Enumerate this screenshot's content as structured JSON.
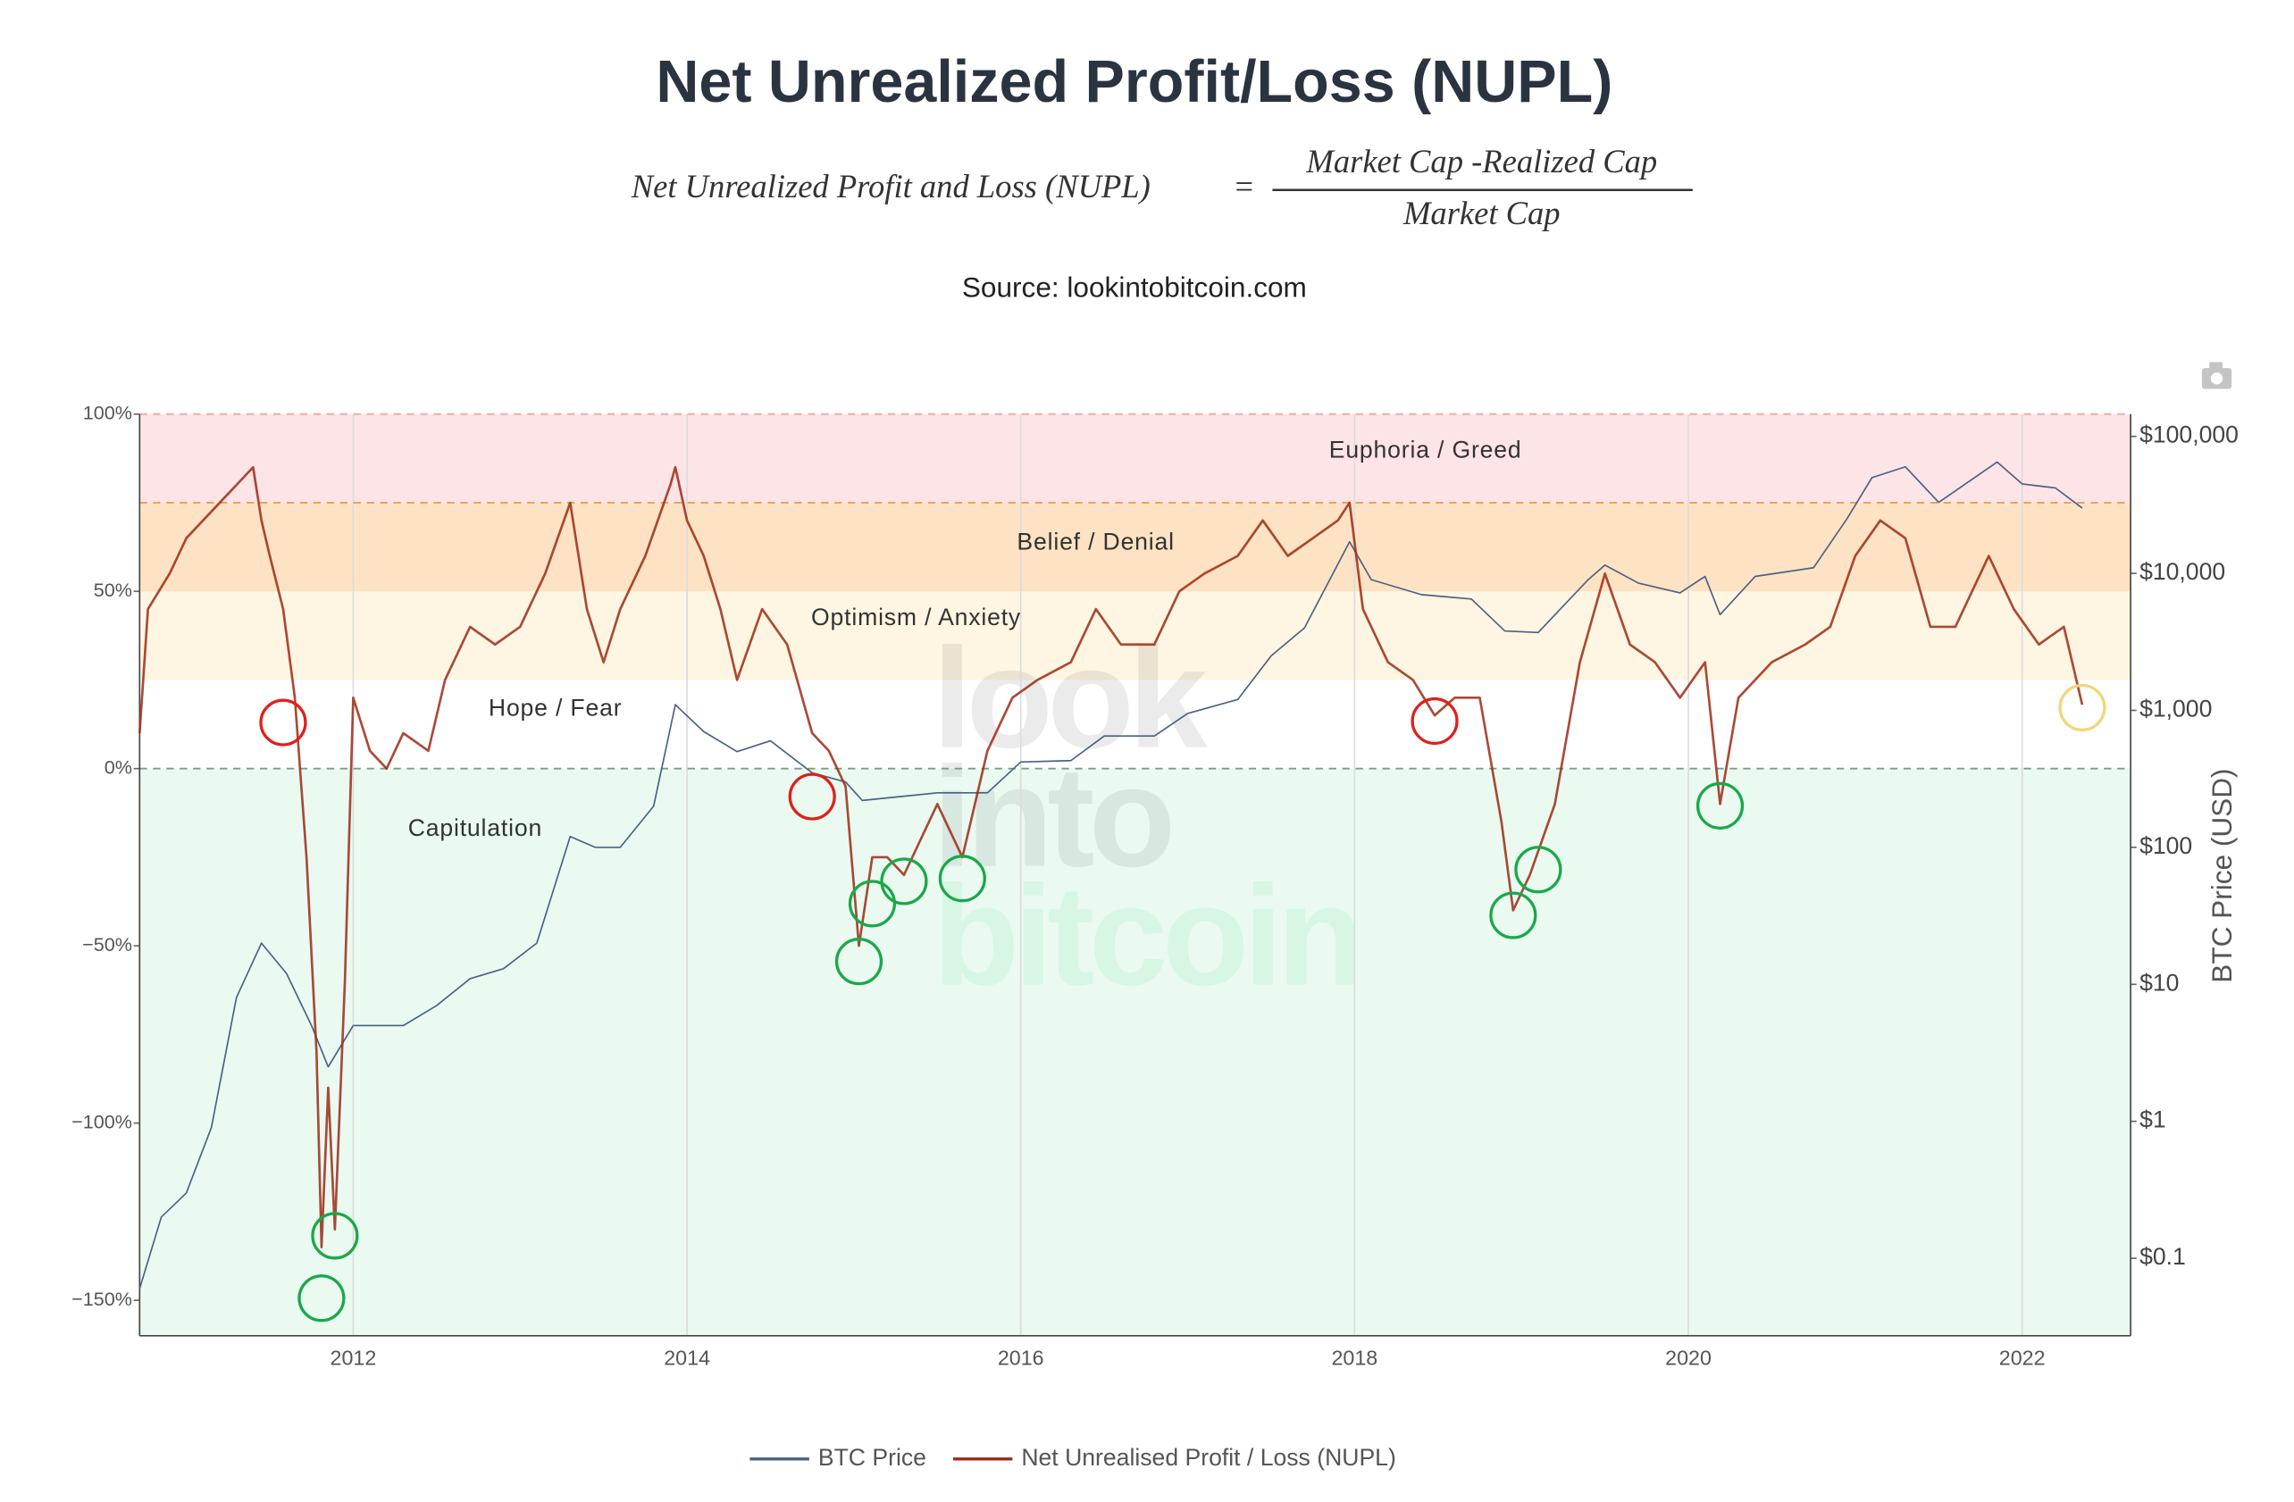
{
  "chart_data": {
    "type": "line",
    "title": "Net Unrealized Profit/Loss (NUPL)",
    "formula": {
      "lhs": "Net Unrealized Profit and Loss (NUPL)",
      "equals": "=",
      "numerator": "Market Cap -Realized Cap",
      "denominator": "Market Cap"
    },
    "subtitle": "Source: lookintobitcoin.com",
    "watermark": [
      "look",
      "into",
      "bitcoin"
    ],
    "y2_label": "BTC Price (USD)",
    "xlim": [
      2010.72,
      2022.65
    ],
    "xticks": [
      2012,
      2014,
      2016,
      2018,
      2020,
      2022
    ],
    "ylim": [
      -160,
      100
    ],
    "yticks": [
      {
        "value": -150,
        "label": "−150%"
      },
      {
        "value": -100,
        "label": "−100%"
      },
      {
        "value": -50,
        "label": "−50%"
      },
      {
        "value": 0,
        "label": "0%"
      },
      {
        "value": 50,
        "label": "50%"
      },
      {
        "value": 100,
        "label": "100%"
      }
    ],
    "y2lim": [
      0.0272,
      145500
    ],
    "y2_log": true,
    "y2ticks": [
      {
        "value": 0.1,
        "label": "$0.1"
      },
      {
        "value": 1,
        "label": "$1"
      },
      {
        "value": 10,
        "label": "$10"
      },
      {
        "value": 100,
        "label": "$100"
      },
      {
        "value": 1000,
        "label": "$1,000"
      },
      {
        "value": 10000,
        "label": "$10,000"
      },
      {
        "value": 100000,
        "label": "$100,000"
      }
    ],
    "grid": true,
    "legend": "bottom",
    "zones": [
      {
        "name": "Capitulation",
        "to": 0,
        "color": "#eafaf1"
      },
      {
        "name": "Hope / Fear",
        "from": 0,
        "to": 25,
        "color": "#ffffff"
      },
      {
        "name": "Optimism / Anxiety",
        "from": 25,
        "to": 50,
        "color": "#fef6e2"
      },
      {
        "name": "Belief / Denial",
        "from": 50,
        "to": 75,
        "color": "#fde3c3"
      },
      {
        "name": "Euphoria / Greed",
        "from": 75,
        "to": 100,
        "color": "#fde4e6"
      }
    ],
    "reference_lines": [
      {
        "value": 100,
        "color": "#f2aaa4"
      },
      {
        "value": 75,
        "color": "#eda25a"
      },
      {
        "value": 0,
        "color": "#7d9a8a"
      }
    ],
    "series": [
      {
        "name": "BTC Price",
        "color": "#4a6184",
        "axis": "y2",
        "x": [
          2010.72,
          2010.85,
          2011.0,
          2011.15,
          2011.3,
          2011.45,
          2011.6,
          2011.75,
          2011.85,
          2012.0,
          2012.3,
          2012.5,
          2012.7,
          2012.9,
          2013.1,
          2013.3,
          2013.45,
          2013.6,
          2013.8,
          2013.93,
          2014.1,
          2014.3,
          2014.5,
          2014.75,
          2014.95,
          2015.05,
          2015.5,
          2015.8,
          2016.0,
          2016.3,
          2016.5,
          2016.8,
          2017.0,
          2017.3,
          2017.5,
          2017.7,
          2017.97,
          2018.1,
          2018.4,
          2018.7,
          2018.9,
          2019.1,
          2019.4,
          2019.5,
          2019.7,
          2019.95,
          2020.1,
          2020.19,
          2020.4,
          2020.75,
          2020.95,
          2021.1,
          2021.3,
          2021.5,
          2021.85,
          2022.0,
          2022.2,
          2022.36
        ],
        "values": [
          0.06,
          0.2,
          0.3,
          0.9,
          8,
          20,
          12,
          5,
          2.5,
          5,
          5,
          7,
          11,
          13,
          20,
          120,
          100,
          100,
          200,
          1100,
          700,
          500,
          600,
          350,
          300,
          220,
          250,
          250,
          420,
          430,
          650,
          650,
          950,
          1200,
          2500,
          4000,
          17000,
          9000,
          7000,
          6500,
          3800,
          3700,
          9000,
          11500,
          8500,
          7200,
          9500,
          5000,
          9500,
          11000,
          25000,
          50000,
          60000,
          33000,
          65000,
          45000,
          42000,
          30000
        ]
      },
      {
        "name": "Net Unrealised Profit / Loss (NUPL)",
        "color": "#9b2a15",
        "x": [
          2010.72,
          2010.77,
          2010.9,
          2011.0,
          2011.1,
          2011.2,
          2011.3,
          2011.4,
          2011.45,
          2011.5,
          2011.58,
          2011.65,
          2011.72,
          2011.78,
          2011.81,
          2011.85,
          2011.89,
          2011.95,
          2012.0,
          2012.1,
          2012.2,
          2012.3,
          2012.45,
          2012.55,
          2012.7,
          2012.85,
          2013.0,
          2013.15,
          2013.3,
          2013.4,
          2013.5,
          2013.6,
          2013.75,
          2013.9,
          2013.93,
          2014.0,
          2014.1,
          2014.2,
          2014.3,
          2014.45,
          2014.6,
          2014.75,
          2014.85,
          2014.95,
          2015.03,
          2015.11,
          2015.2,
          2015.3,
          2015.4,
          2015.5,
          2015.65,
          2015.8,
          2015.95,
          2016.1,
          2016.3,
          2016.45,
          2016.6,
          2016.8,
          2016.95,
          2017.1,
          2017.3,
          2017.45,
          2017.6,
          2017.75,
          2017.9,
          2017.97,
          2018.05,
          2018.2,
          2018.35,
          2018.48,
          2018.6,
          2018.75,
          2018.88,
          2018.95,
          2019.05,
          2019.2,
          2019.35,
          2019.5,
          2019.65,
          2019.8,
          2019.95,
          2020.1,
          2020.19,
          2020.3,
          2020.5,
          2020.7,
          2020.85,
          2021.0,
          2021.15,
          2021.3,
          2021.45,
          2021.6,
          2021.8,
          2021.95,
          2022.1,
          2022.25,
          2022.3,
          2022.36
        ],
        "values": [
          10,
          45,
          55,
          65,
          70,
          75,
          80,
          85,
          70,
          60,
          45,
          20,
          -25,
          -80,
          -135,
          -90,
          -130,
          -60,
          20,
          5,
          0,
          10,
          5,
          25,
          40,
          35,
          40,
          55,
          75,
          45,
          30,
          45,
          60,
          80,
          85,
          70,
          60,
          45,
          25,
          45,
          35,
          10,
          5,
          -5,
          -50,
          -25,
          -25,
          -30,
          -20,
          -10,
          -25,
          5,
          20,
          25,
          30,
          45,
          35,
          35,
          50,
          55,
          60,
          70,
          60,
          65,
          70,
          75,
          45,
          30,
          25,
          15,
          20,
          20,
          -15,
          -40,
          -30,
          -10,
          30,
          55,
          35,
          30,
          20,
          30,
          -10,
          20,
          30,
          35,
          40,
          60,
          70,
          65,
          40,
          40,
          60,
          45,
          35,
          40,
          30,
          18
        ]
      }
    ],
    "markers": [
      {
        "x": 2011.58,
        "y": 13.0,
        "color": "#e0201c"
      },
      {
        "x": 2014.75,
        "y": -7.9,
        "color": "#e0201c"
      },
      {
        "x": 2018.48,
        "y": 13.4,
        "color": "#e0201c"
      },
      {
        "x": 2011.81,
        "y": -149.4,
        "color": "#1aa84a"
      },
      {
        "x": 2011.89,
        "y": -131.8,
        "color": "#1aa84a"
      },
      {
        "x": 2015.03,
        "y": -54.4,
        "color": "#1aa84a"
      },
      {
        "x": 2015.11,
        "y": -38.1,
        "color": "#1aa84a"
      },
      {
        "x": 2015.3,
        "y": -31.8,
        "color": "#1aa84a"
      },
      {
        "x": 2015.65,
        "y": -31.0,
        "color": "#1aa84a"
      },
      {
        "x": 2018.95,
        "y": -41.4,
        "color": "#1aa84a"
      },
      {
        "x": 2019.1,
        "y": -28.5,
        "color": "#1aa84a"
      },
      {
        "x": 2020.19,
        "y": -10.5,
        "color": "#1aa84a"
      },
      {
        "x": 2022.36,
        "y": 17.2,
        "color": "#f3d67a"
      }
    ]
  }
}
